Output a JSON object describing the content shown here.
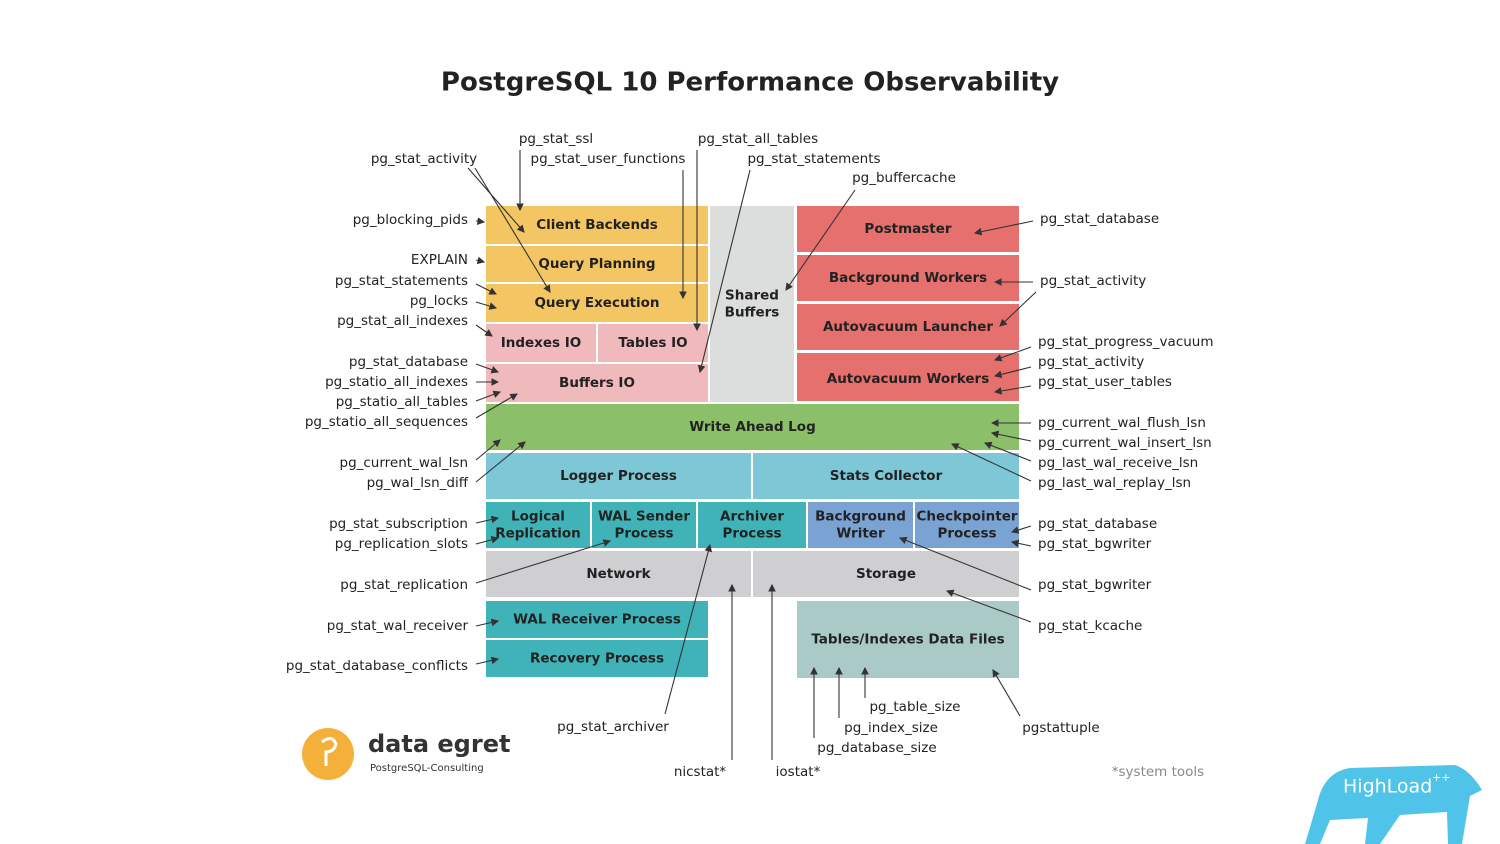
{
  "title": "PostgreSQL 10 Performance Observability",
  "blocks": [
    {
      "label": [
        "Client Backends"
      ]
    },
    {
      "label": [
        "Query Planning"
      ]
    },
    {
      "label": [
        "Query Execution"
      ]
    },
    {
      "label": [
        "Indexes IO"
      ]
    },
    {
      "label": [
        "Tables IO"
      ]
    },
    {
      "label": [
        "Buffers IO"
      ]
    },
    {
      "label": [
        "Shared",
        "Buffers"
      ]
    },
    {
      "label": [
        "Postmaster"
      ]
    },
    {
      "label": [
        "Background Workers"
      ]
    },
    {
      "label": [
        "Autovacuum Launcher"
      ]
    },
    {
      "label": [
        "Autovacuum Workers"
      ]
    },
    {
      "label": [
        "Write Ahead Log"
      ]
    },
    {
      "label": [
        "Logger Process"
      ]
    },
    {
      "label": [
        "Stats Collector"
      ]
    },
    {
      "label": [
        "Logical",
        "Replication"
      ]
    },
    {
      "label": [
        "WAL Sender",
        "Process"
      ]
    },
    {
      "label": [
        "Archiver",
        "Process"
      ]
    },
    {
      "label": [
        "Background",
        "Writer"
      ]
    },
    {
      "label": [
        "Checkpointer",
        "Process"
      ]
    },
    {
      "label": [
        "Network"
      ]
    },
    {
      "label": [
        "Storage"
      ]
    },
    {
      "label": [
        "WAL Receiver Process"
      ]
    },
    {
      "label": [
        "Recovery Process"
      ]
    },
    {
      "label": [
        "Tables/Indexes Data Files"
      ]
    }
  ],
  "annotations": [
    {
      "label": "pg_blocking_pids"
    },
    {
      "label": "EXPLAIN"
    },
    {
      "label": "pg_stat_statements"
    },
    {
      "label": "pg_locks"
    },
    {
      "label": "pg_stat_all_indexes"
    },
    {
      "label": "pg_stat_database"
    },
    {
      "label": "pg_statio_all_indexes"
    },
    {
      "label": "pg_statio_all_tables"
    },
    {
      "label": "pg_statio_all_sequences"
    },
    {
      "label": "pg_current_wal_lsn"
    },
    {
      "label": "pg_wal_lsn_diff"
    },
    {
      "label": "pg_stat_subscription"
    },
    {
      "label": "pg_replication_slots"
    },
    {
      "label": "pg_stat_replication"
    },
    {
      "label": "pg_stat_wal_receiver"
    },
    {
      "label": "pg_stat_database_conflicts"
    },
    {
      "label": "pg_stat_activity"
    },
    {
      "label": "pg_stat_ssl"
    },
    {
      "label": "pg_stat_user_functions"
    },
    {
      "label": "pg_stat_all_tables"
    },
    {
      "label": "pg_stat_statements"
    },
    {
      "label": "pg_buffercache"
    },
    {
      "label": "pg_stat_archiver"
    },
    {
      "label": "nicstat*"
    },
    {
      "label": "iostat*"
    },
    {
      "label": "pg_table_size"
    },
    {
      "label": "pg_index_size"
    },
    {
      "label": "pg_database_size"
    },
    {
      "label": "pgstattuple"
    },
    {
      "label": "pg_stat_database"
    },
    {
      "label": "pg_stat_activity"
    },
    {
      "label": "pg_stat_progress_vacuum"
    },
    {
      "label": "pg_stat_activity"
    },
    {
      "label": "pg_stat_user_tables"
    },
    {
      "label": "pg_current_wal_flush_lsn"
    },
    {
      "label": "pg_current_wal_insert_lsn"
    },
    {
      "label": "pg_last_wal_receive_lsn"
    },
    {
      "label": "pg_last_wal_replay_lsn"
    },
    {
      "label": "pg_stat_database"
    },
    {
      "label": "pg_stat_bgwriter"
    },
    {
      "label": "pg_stat_bgwriter"
    },
    {
      "label": "pg_stat_kcache"
    }
  ],
  "logo": {
    "name": "data egret",
    "tagline": "PostgreSQL-Consulting"
  },
  "note": "*system tools",
  "badge": {
    "name": "HighLoad",
    "suffix": "++"
  }
}
